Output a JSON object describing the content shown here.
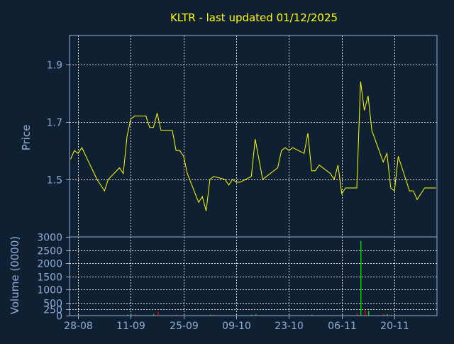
{
  "colors": {
    "background": "#0f2033",
    "title": "#ffff00",
    "axis_text": "#8faed6",
    "frame": "#8faed6",
    "grid": "#ffffff",
    "price_line": "#ffff00",
    "volume_up": "#00cc00",
    "volume_down": "#dd0000"
  },
  "chart_data": [
    {
      "type": "line",
      "title": "KLTR - last updated 01/12/2025",
      "ylabel": "Price",
      "ylim": [
        1.3,
        2.0
      ],
      "yticks": [
        1.5,
        1.7,
        1.9
      ],
      "ytick_labels": [
        "1.5",
        "1.7",
        "1.9"
      ],
      "grid": true,
      "xlim": [
        "2025-08-26",
        "2025-12-01"
      ],
      "xticks": [
        "2025-08-28",
        "2025-09-11",
        "2025-09-25",
        "2025-10-09",
        "2025-10-23",
        "2025-11-06",
        "2025-11-20"
      ],
      "xtick_labels": [
        "28-08",
        "11-09",
        "25-09",
        "09-10",
        "23-10",
        "06-11",
        "20-11"
      ],
      "series": [
        {
          "x": [
            "2025-08-26",
            "2025-08-27",
            "2025-08-28",
            "2025-08-29",
            "2025-09-02",
            "2025-09-03",
            "2025-09-04",
            "2025-09-05",
            "2025-09-08",
            "2025-09-09",
            "2025-09-10",
            "2025-09-11",
            "2025-09-12",
            "2025-09-15",
            "2025-09-16",
            "2025-09-17",
            "2025-09-18",
            "2025-09-19",
            "2025-09-22",
            "2025-09-23",
            "2025-09-24",
            "2025-09-25",
            "2025-09-26",
            "2025-09-29",
            "2025-09-30",
            "2025-10-01",
            "2025-10-02",
            "2025-10-03",
            "2025-10-06",
            "2025-10-07",
            "2025-10-08",
            "2025-10-09",
            "2025-10-10",
            "2025-10-13",
            "2025-10-14",
            "2025-10-15",
            "2025-10-16",
            "2025-10-17",
            "2025-10-20",
            "2025-10-21",
            "2025-10-22",
            "2025-10-23",
            "2025-10-24",
            "2025-10-27",
            "2025-10-28",
            "2025-10-29",
            "2025-10-30",
            "2025-10-31",
            "2025-11-03",
            "2025-11-04",
            "2025-11-05",
            "2025-11-06",
            "2025-11-07",
            "2025-11-10",
            "2025-11-11",
            "2025-11-12",
            "2025-11-13",
            "2025-11-14",
            "2025-11-17",
            "2025-11-18",
            "2025-11-19",
            "2025-11-20",
            "2025-11-21",
            "2025-11-24",
            "2025-11-25",
            "2025-11-26",
            "2025-11-28",
            "2025-12-01"
          ],
          "y": [
            1.57,
            1.6,
            1.59,
            1.61,
            1.5,
            1.48,
            1.46,
            1.5,
            1.54,
            1.52,
            1.65,
            1.71,
            1.72,
            1.72,
            1.68,
            1.68,
            1.73,
            1.67,
            1.67,
            1.6,
            1.6,
            1.58,
            1.52,
            1.42,
            1.44,
            1.39,
            1.5,
            1.51,
            1.5,
            1.48,
            1.5,
            1.49,
            1.49,
            1.51,
            1.64,
            1.57,
            1.5,
            1.51,
            1.54,
            1.6,
            1.61,
            1.6,
            1.61,
            1.59,
            1.66,
            1.53,
            1.53,
            1.55,
            1.52,
            1.5,
            1.55,
            1.45,
            1.47,
            1.47,
            1.84,
            1.74,
            1.79,
            1.67,
            1.56,
            1.59,
            1.47,
            1.46,
            1.58,
            1.46,
            1.46,
            1.43,
            1.47,
            1.47
          ]
        }
      ]
    },
    {
      "type": "bar",
      "ylabel": "Volume (0000)",
      "ylim": [
        0,
        3000
      ],
      "yticks": [
        0,
        250,
        500,
        1000,
        1500,
        2000,
        2500,
        3000
      ],
      "ytick_labels": [
        "0",
        "250",
        "500",
        "1000",
        "1500",
        "2000",
        "2500",
        "3000"
      ],
      "grid": true,
      "x": [
        "2025-09-10",
        "2025-09-11",
        "2025-09-12",
        "2025-09-17",
        "2025-09-18",
        "2025-09-23",
        "2025-10-02",
        "2025-10-03",
        "2025-10-13",
        "2025-10-14",
        "2025-10-29",
        "2025-11-10",
        "2025-11-11",
        "2025-11-12",
        "2025-11-13",
        "2025-11-17",
        "2025-11-18",
        "2025-11-19"
      ],
      "values": [
        40,
        70,
        60,
        60,
        150,
        45,
        40,
        50,
        40,
        60,
        40,
        100,
        2850,
        220,
        180,
        80,
        60,
        50
      ],
      "direction": [
        "up",
        "up",
        "down",
        "up",
        "down",
        "down",
        "up",
        "down",
        "up",
        "up",
        "up",
        "down",
        "up",
        "down",
        "up",
        "down",
        "up",
        "down"
      ]
    }
  ]
}
